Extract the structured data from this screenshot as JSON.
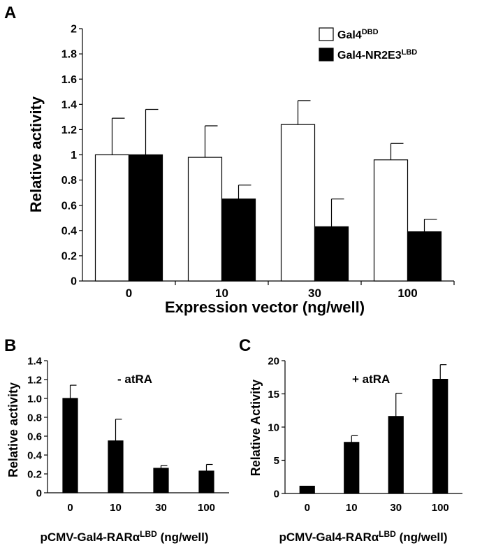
{
  "panels": {
    "A": {
      "label": "A"
    },
    "B": {
      "label": "B"
    },
    "C": {
      "label": "C"
    }
  },
  "chart_data": [
    {
      "panel": "A",
      "type": "bar",
      "title": "",
      "xlabel": "Expression vector (ng/well)",
      "ylabel": "Relative activity",
      "ylim": [
        0,
        2
      ],
      "yticks": [
        "0",
        "0.2",
        "0.4",
        "0.6",
        "0.8",
        "1",
        "1.2",
        "1.4",
        "1.6",
        "1.8",
        "2"
      ],
      "categories": [
        "0",
        "10",
        "30",
        "100"
      ],
      "legend": {
        "position": "top-right"
      },
      "series": [
        {
          "name": "Gal4",
          "name_sup": "DBD",
          "color": "#ffffff",
          "values": [
            1.0,
            0.98,
            1.24,
            0.96
          ],
          "errors": [
            0.29,
            0.25,
            0.19,
            0.13
          ]
        },
        {
          "name": "Gal4-NR2E3",
          "name_sup": "LBD",
          "color": "#000000",
          "values": [
            1.0,
            0.65,
            0.43,
            0.39
          ],
          "errors": [
            0.36,
            0.11,
            0.22,
            0.1
          ]
        }
      ],
      "grid": false
    },
    {
      "panel": "B",
      "type": "bar",
      "title": "",
      "annotation": "- atRA",
      "xlabel": "pCMV-Gal4-RARα",
      "xlabel_sup": "LBD",
      "xlabel_suffix": " (ng/well)",
      "ylabel": "Relative activity",
      "ylim": [
        0,
        1.4
      ],
      "yticks": [
        "0",
        "0.2",
        "0.4",
        "0.6",
        "0.8",
        "1.0",
        "1.2",
        "1.4"
      ],
      "categories": [
        "0",
        "10",
        "30",
        "100"
      ],
      "series": [
        {
          "color": "#000000",
          "values": [
            1.0,
            0.55,
            0.26,
            0.23
          ],
          "errors": [
            0.14,
            0.23,
            0.03,
            0.07
          ]
        }
      ],
      "grid": false
    },
    {
      "panel": "C",
      "type": "bar",
      "title": "",
      "annotation": "+ atRA",
      "xlabel": "pCMV-Gal4-RARα",
      "xlabel_sup": "LBD",
      "xlabel_suffix": " (ng/well)",
      "ylabel": "Relative Activity",
      "ylim": [
        0,
        20
      ],
      "yticks": [
        "0",
        "5",
        "10",
        "15",
        "20"
      ],
      "categories": [
        "0",
        "10",
        "30",
        "100"
      ],
      "series": [
        {
          "color": "#000000",
          "values": [
            1.1,
            7.7,
            11.6,
            17.2
          ],
          "errors": [
            0.0,
            1.0,
            3.5,
            2.2
          ]
        }
      ],
      "grid": false
    }
  ]
}
